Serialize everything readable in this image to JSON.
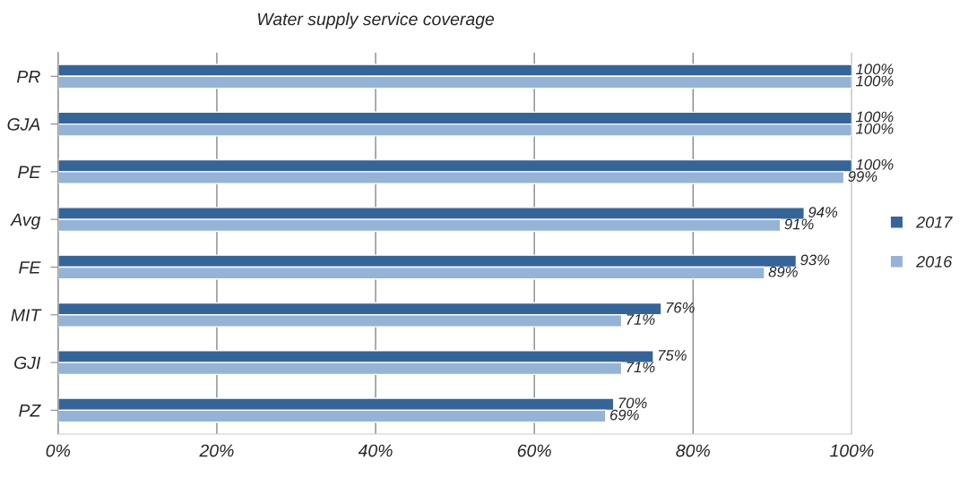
{
  "chart_data": {
    "type": "bar",
    "orientation": "horizontal",
    "title": "Water supply service coverage",
    "categories": [
      "PR",
      "GJA",
      "PE",
      "Avg",
      "FE",
      "MIT",
      "GJI",
      "PZ"
    ],
    "series": [
      {
        "name": "2017",
        "color": "#35649a",
        "values": [
          100,
          100,
          100,
          94,
          93,
          76,
          75,
          70
        ],
        "value_labels": [
          "100%",
          "100%",
          "100%",
          "94%",
          "93%",
          "76%",
          "75%",
          "70%"
        ]
      },
      {
        "name": "2016",
        "color": "#95b3d7",
        "values": [
          100,
          100,
          99,
          91,
          89,
          71,
          71,
          69
        ],
        "value_labels": [
          "100%",
          "100%",
          "99%",
          "91%",
          "89%",
          "71%",
          "71%",
          "69%"
        ]
      }
    ],
    "xlim": [
      0,
      100
    ],
    "xticks": [
      {
        "value": 0,
        "label": "0%"
      },
      {
        "value": 20,
        "label": "20%"
      },
      {
        "value": 40,
        "label": "40%"
      },
      {
        "value": 60,
        "label": "60%"
      },
      {
        "value": 80,
        "label": "80%"
      },
      {
        "value": 100,
        "label": "100%"
      }
    ],
    "grid": "x",
    "legend": "right"
  }
}
